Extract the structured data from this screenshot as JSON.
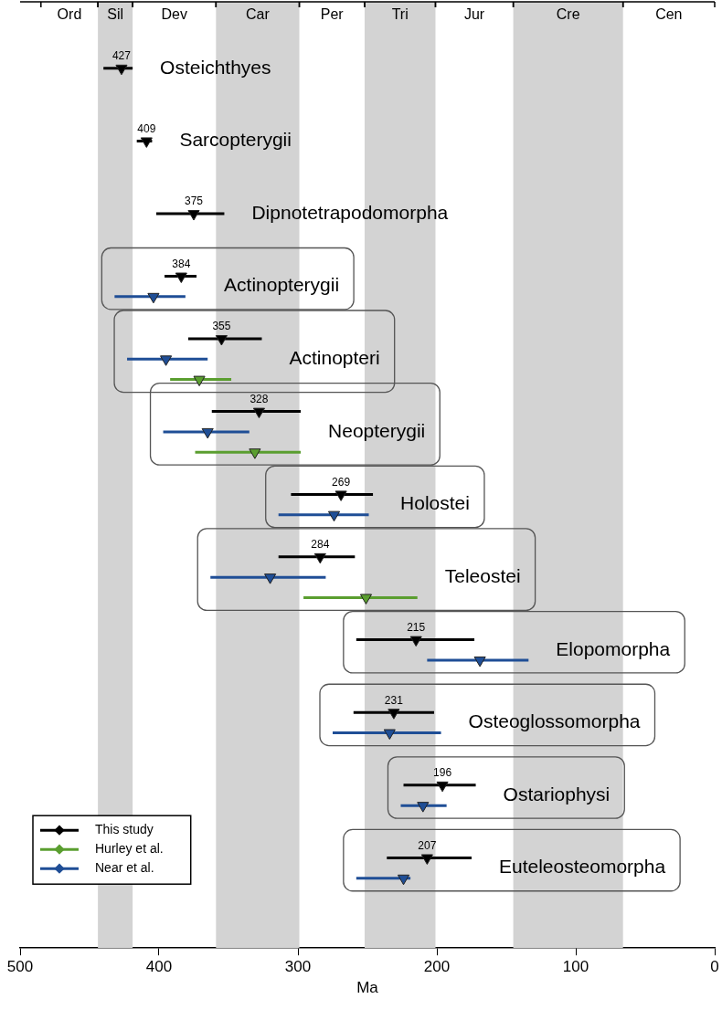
{
  "chart_data": {
    "type": "interval",
    "x_label": "Ma",
    "xlim": [
      500,
      0
    ],
    "xticks": [
      500,
      400,
      300,
      200,
      100,
      0
    ],
    "tick_labels": "x",
    "grid": false,
    "legend": "lower left",
    "marker": "triangle_down",
    "periods": [
      {
        "name": "Ord",
        "start": 485,
        "end": 444
      },
      {
        "name": "Sil",
        "start": 444,
        "end": 419
      },
      {
        "name": "Dev",
        "start": 419,
        "end": 359
      },
      {
        "name": "Car",
        "start": 359,
        "end": 299
      },
      {
        "name": "Per",
        "start": 299,
        "end": 252
      },
      {
        "name": "Tri",
        "start": 252,
        "end": 201
      },
      {
        "name": "Jur",
        "start": 201,
        "end": 145
      },
      {
        "name": "Cre",
        "start": 145,
        "end": 66
      },
      {
        "name": "Cen",
        "start": 66,
        "end": 0
      }
    ],
    "categories": [
      "Osteichthyes",
      "Sarcopterygii",
      "Dipnotetrapodomorpha",
      "Actinopterygii",
      "Actinopteri",
      "Neopterygii",
      "Holostei",
      "Teleostei",
      "Elopomorpha",
      "Osteoglossomorpha",
      "Ostariophysi",
      "Euteleosteomorpha"
    ],
    "series": [
      {
        "name": "This study",
        "color": "#000000",
        "data_labels": true,
        "values": [
          427,
          409,
          375,
          384,
          355,
          328,
          269,
          284,
          215,
          231,
          196,
          207
        ],
        "lower": [
          419,
          405,
          353,
          373,
          326,
          298,
          246,
          259,
          173,
          202,
          172,
          175
        ],
        "upper": [
          440,
          416,
          402,
          396,
          379,
          362,
          305,
          314,
          258,
          260,
          224,
          236
        ]
      },
      {
        "name": "Hurley et al.",
        "color": "#5a9e2f",
        "data_labels": false,
        "values": [
          null,
          null,
          null,
          null,
          371,
          331,
          null,
          251,
          null,
          null,
          null,
          null
        ],
        "lower": [
          null,
          null,
          null,
          null,
          348,
          298,
          null,
          214,
          null,
          null,
          null,
          null
        ],
        "upper": [
          null,
          null,
          null,
          null,
          392,
          374,
          null,
          296,
          null,
          null,
          null,
          null
        ]
      },
      {
        "name": "Near et al.",
        "color": "#1f4e96",
        "data_labels": false,
        "values": [
          null,
          null,
          null,
          404,
          395,
          365,
          274,
          320,
          169,
          234,
          210,
          224
        ],
        "lower": [
          null,
          null,
          null,
          381,
          365,
          335,
          249,
          280,
          134,
          197,
          193,
          219
        ],
        "upper": [
          null,
          null,
          null,
          432,
          423,
          397,
          314,
          363,
          207,
          275,
          226,
          258
        ]
      }
    ]
  }
}
